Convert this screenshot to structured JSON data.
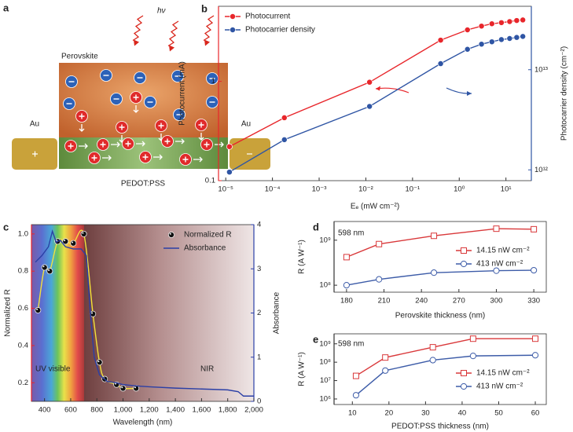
{
  "diagram": {
    "panel_label": "a",
    "photon": "hν",
    "top_layer": "Perovskite",
    "bottom_layer": "PEDOT:PSS",
    "left_electrode": "Au",
    "right_electrode": "Au"
  },
  "chart_data": [
    {
      "panel_label": "b",
      "type": "line",
      "x_label": "Eₑ (mW cm⁻²)",
      "y_label": "Photocurrent (mA)",
      "y2_label": "Photocarrier density (cm⁻²)",
      "xscale": "log",
      "yscale": "log",
      "y2scale": "log",
      "xlim": [
        7e-06,
        35
      ],
      "xticks": [
        {
          "value": 1e-05,
          "label": "10⁻⁵"
        },
        {
          "value": 0.0001,
          "label": "10⁻⁴"
        },
        {
          "value": 0.001,
          "label": "10⁻³"
        },
        {
          "value": 0.01,
          "label": "10⁻²"
        },
        {
          "value": 0.1,
          "label": "10⁻¹"
        },
        {
          "value": 1,
          "label": "10⁰"
        },
        {
          "value": 10,
          "label": "10¹"
        }
      ],
      "ylim": [
        0.1,
        5.7
      ],
      "yticks": [
        0.1,
        1
      ],
      "y2lim": [
        780000000000.0,
        43000000000000.0
      ],
      "y2ticks": [
        {
          "value": 1000000000000.0,
          "label": "10¹²"
        },
        {
          "value": 10000000000000.0,
          "label": "10¹³"
        }
      ],
      "y_axis_color": "#e8262b",
      "y2_axis_color": "#2f55a4",
      "legend": "upper left",
      "series": [
        {
          "name": "Photocurrent",
          "color": "#e8262b",
          "marker": "circle",
          "marker_fill": "filled",
          "x": [
            1.2e-05,
            0.00018,
            0.012,
            0.4,
            1.5,
            3,
            5,
            8,
            12,
            17,
            23
          ],
          "values": [
            0.22,
            0.43,
            0.98,
            2.6,
            3.3,
            3.6,
            3.8,
            3.9,
            4.0,
            4.1,
            4.15
          ]
        },
        {
          "name": "Photocarrier density",
          "color": "#2f55a4",
          "axis": "y2",
          "marker": "circle",
          "marker_fill": "filled",
          "x": [
            1.2e-05,
            0.00018,
            0.012,
            0.4,
            1.5,
            3,
            5,
            8,
            12,
            17,
            23
          ],
          "values": [
            950000000000.0,
            2000000000000.0,
            4300000000000.0,
            11500000000000.0,
            16000000000000.0,
            18000000000000.0,
            19000000000000.0,
            20000000000000.0,
            20500000000000.0,
            21000000000000.0,
            21500000000000.0
          ]
        }
      ]
    },
    {
      "panel_label": "c",
      "type": "line",
      "x_label": "Wavelength (nm)",
      "y_label": "Normalized R",
      "y2_label": "Absorbance",
      "xlim": [
        300,
        2000
      ],
      "xticks": [
        400,
        600,
        800,
        {
          "value": 1000,
          "label": "1,000"
        },
        {
          "value": 1200,
          "label": "1,200"
        },
        {
          "value": 1400,
          "label": "1,400"
        },
        {
          "value": 1600,
          "label": "1,600"
        },
        {
          "value": 1800,
          "label": "1,800"
        },
        {
          "value": 2000,
          "label": "2,000"
        }
      ],
      "ylim": [
        0.1,
        1.05
      ],
      "yticks": [
        0.2,
        0.4,
        0.6,
        0.8,
        {
          "value": 1,
          "label": "1.0"
        }
      ],
      "y2lim": [
        0,
        4
      ],
      "y2ticks": [
        0,
        1,
        2,
        3,
        4
      ],
      "y_axis_color": "#e8262b",
      "y2_axis_color": "#2b3fa6",
      "legend": "upper right",
      "annotations": [
        "UV visible",
        "NIR"
      ],
      "series": [
        {
          "name": "Normalized R",
          "color": "#f2e23c",
          "smooth": true,
          "marker": "circle",
          "marker_fill": "filled",
          "marker_color": "#111111",
          "x": [
            350,
            400,
            440,
            500,
            560,
            620,
            700,
            770,
            820,
            860,
            950,
            1000,
            1100
          ],
          "values": [
            0.59,
            0.82,
            0.8,
            0.96,
            0.96,
            0.95,
            1.0,
            0.57,
            0.31,
            0.22,
            0.19,
            0.17,
            0.17
          ]
        },
        {
          "name": "Absorbance",
          "color": "#2b3fa6",
          "axis": "y2",
          "x": [
            330,
            380,
            430,
            460,
            490,
            520,
            560,
            620,
            680,
            720,
            750,
            780,
            820,
            880,
            950,
            1000,
            1100,
            1200,
            1400,
            1600,
            1800,
            1880,
            1920,
            2000
          ],
          "values": [
            3.15,
            3.3,
            3.5,
            3.85,
            3.6,
            3.65,
            3.5,
            3.45,
            3.45,
            3.3,
            2.0,
            1.0,
            0.6,
            0.45,
            0.42,
            0.38,
            0.35,
            0.33,
            0.3,
            0.28,
            0.26,
            0.22,
            0.12,
            0.12
          ]
        }
      ]
    },
    {
      "panel_label": "d",
      "type": "line",
      "x_label": "Perovskite thickness (nm)",
      "y_label": "R (A W⁻¹)",
      "yscale": "log",
      "xlim": [
        170,
        340
      ],
      "xticks": [
        180,
        210,
        240,
        270,
        300,
        330
      ],
      "ylim": [
        70000000.0,
        2600000000.0
      ],
      "yticks": [
        {
          "value": 100000000.0,
          "label": "10⁸"
        },
        {
          "value": 1000000000.0,
          "label": "10⁹"
        }
      ],
      "legend": "center right",
      "annotations": [
        "598 nm"
      ],
      "series": [
        {
          "name": "14.15 nW cm⁻²",
          "color": "#d9383a",
          "marker": "square",
          "marker_fill": "open",
          "x": [
            180,
            206,
            250,
            300,
            330
          ],
          "values": [
            420000000.0,
            820000000.0,
            1250000000.0,
            1800000000.0,
            1750000000.0
          ]
        },
        {
          "name": "413 nW cm⁻²",
          "color": "#3d5ca8",
          "marker": "circle",
          "marker_fill": "open",
          "x": [
            180,
            206,
            250,
            300,
            330
          ],
          "values": [
            100000000.0,
            135000000.0,
            190000000.0,
            210000000.0,
            215000000.0
          ]
        }
      ]
    },
    {
      "panel_label": "e",
      "type": "line",
      "x_label": "PEDOT:PSS thickness (nm)",
      "y_label": "R (A W⁻¹)",
      "yscale": "log",
      "xlim": [
        5,
        63
      ],
      "xticks": [
        10,
        20,
        30,
        40,
        50,
        60
      ],
      "ylim": [
        500000.0,
        3500000000.0
      ],
      "yticks": [
        {
          "value": 1000000.0,
          "label": "10⁶"
        },
        {
          "value": 10000000.0,
          "label": "10⁷"
        },
        {
          "value": 100000000.0,
          "label": "10⁸"
        },
        {
          "value": 1000000000.0,
          "label": "10⁹"
        }
      ],
      "legend": "lower right",
      "annotations": [
        "598 nm"
      ],
      "series": [
        {
          "name": "14.15 nW cm⁻²",
          "color": "#d9383a",
          "marker": "square",
          "marker_fill": "open",
          "x": [
            11,
            19,
            32,
            43,
            60
          ],
          "values": [
            18000000.0,
            180000000.0,
            650000000.0,
            1900000000.0,
            1900000000.0
          ]
        },
        {
          "name": "413 nW cm⁻²",
          "color": "#3d5ca8",
          "marker": "circle",
          "marker_fill": "open",
          "x": [
            11,
            19,
            32,
            43,
            60
          ],
          "values": [
            1600000.0,
            35000000.0,
            130000000.0,
            220000000.0,
            240000000.0
          ]
        }
      ]
    }
  ]
}
